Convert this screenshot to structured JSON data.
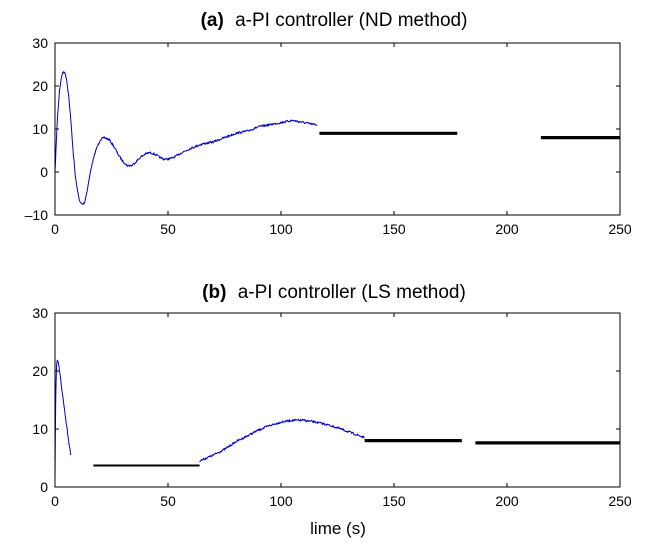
{
  "chart_data": [
    {
      "type": "line",
      "panel_tag": "(a)",
      "title": "a-PI controller (ND method)",
      "xlabel": "",
      "ylabel": "",
      "xlim": [
        0,
        250
      ],
      "ylim": [
        -10,
        30
      ],
      "xticks": [
        0,
        50,
        100,
        150,
        200,
        250
      ],
      "yticks": [
        -10,
        0,
        10,
        20,
        30
      ],
      "ytick_labels": [
        "–10",
        "0",
        "10",
        "20",
        "30"
      ],
      "grid": false,
      "series": [
        {
          "style": "noisy-line",
          "color": "#0000cc",
          "x": [
            0,
            1,
            2,
            3,
            4,
            5,
            6,
            7,
            8,
            9,
            10,
            11,
            12,
            13,
            14,
            15,
            16,
            18,
            20,
            22,
            24,
            26,
            28,
            30,
            32,
            34,
            36,
            38,
            40,
            42,
            44,
            46,
            48,
            50,
            52,
            54,
            56,
            58,
            60,
            65,
            70,
            75,
            80,
            85,
            90,
            95,
            100,
            105,
            110,
            115,
            116
          ],
          "y": [
            0,
            12,
            19,
            22.5,
            23.5,
            22,
            18,
            12,
            5,
            -1,
            -4.5,
            -7,
            -7.5,
            -7.2,
            -5,
            -2,
            1,
            5,
            7.5,
            8,
            7.5,
            6,
            4,
            2.5,
            1.5,
            1.5,
            2.5,
            3.5,
            4.2,
            4.5,
            4.2,
            3.5,
            3,
            3,
            3.3,
            3.8,
            4.5,
            5,
            5.5,
            6.5,
            7,
            8,
            9,
            9.5,
            10.5,
            11,
            11.5,
            12,
            11.5,
            11,
            11
          ]
        },
        {
          "style": "thick-line",
          "color": "#000000",
          "x": [
            117,
            178
          ],
          "y": [
            9,
            9
          ]
        },
        {
          "style": "thick-line",
          "color": "#000000",
          "x": [
            215,
            250
          ],
          "y": [
            8,
            8
          ]
        }
      ]
    },
    {
      "type": "line",
      "panel_tag": "(b)",
      "title": "a-PI controller (LS method)",
      "xlabel": "lime (s)",
      "ylabel": "",
      "xlim": [
        0,
        250
      ],
      "ylim": [
        0,
        30
      ],
      "xticks": [
        0,
        50,
        100,
        150,
        200,
        250
      ],
      "yticks": [
        0,
        10,
        20,
        30
      ],
      "ytick_labels": [
        "0",
        "10",
        "20",
        "30"
      ],
      "grid": false,
      "series": [
        {
          "style": "noisy-line",
          "color": "#0000cc",
          "x": [
            0,
            0.3,
            0.7,
            1,
            1.5,
            2,
            3,
            4,
            5,
            6,
            7
          ],
          "y": [
            1,
            15,
            21,
            22,
            21.5,
            20,
            17,
            14,
            11,
            8,
            5.5
          ]
        },
        {
          "style": "thin-line",
          "color": "#000000",
          "x": [
            17,
            64
          ],
          "y": [
            3.7,
            3.7
          ]
        },
        {
          "style": "noisy-line",
          "color": "#0000cc",
          "x": [
            64,
            70,
            75,
            80,
            85,
            90,
            95,
            100,
            105,
            110,
            115,
            120,
            125,
            130,
            135,
            137
          ],
          "y": [
            4.5,
            5.5,
            6.5,
            7.8,
            8.8,
            9.8,
            10.6,
            11.2,
            11.5,
            11.5,
            11.2,
            10.8,
            10.2,
            9.5,
            8.8,
            8.5
          ]
        },
        {
          "style": "thick-line",
          "color": "#000000",
          "x": [
            137,
            180
          ],
          "y": [
            8,
            8
          ]
        },
        {
          "style": "thick-line",
          "color": "#000000",
          "x": [
            186,
            250
          ],
          "y": [
            7.6,
            7.6
          ]
        }
      ]
    }
  ]
}
